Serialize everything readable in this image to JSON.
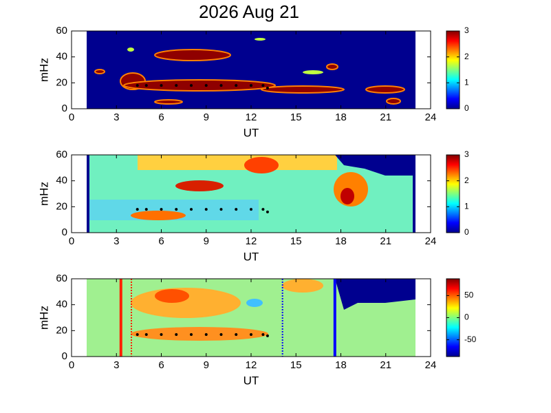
{
  "chart_data": [
    {
      "type": "spectrogram",
      "title": "2026 Aug 21",
      "xlabel": "UT",
      "ylabel": "mHz",
      "xlim": [
        0,
        24
      ],
      "xticks": [
        0,
        3,
        6,
        9,
        12,
        15,
        18,
        21,
        24
      ],
      "ylim": [
        0,
        60
      ],
      "yticks": [
        0,
        20,
        40,
        60
      ],
      "clim": [
        0,
        3
      ],
      "cticks": [
        0,
        1,
        2,
        3
      ],
      "x": [
        4.4,
        5,
        6,
        7,
        8,
        9,
        10,
        11,
        12,
        12.8,
        13.1
      ],
      "values": [
        18,
        18,
        18,
        18,
        18,
        18,
        18,
        18,
        18,
        18,
        16
      ],
      "color": "#000000"
    },
    {
      "type": "spectrogram",
      "xlabel": "UT",
      "ylabel": "mHz",
      "xlim": [
        0,
        24
      ],
      "xticks": [
        0,
        3,
        6,
        9,
        12,
        15,
        18,
        21,
        24
      ],
      "ylim": [
        0,
        60
      ],
      "yticks": [
        0,
        20,
        40,
        60
      ],
      "clim": [
        0,
        3
      ],
      "cticks": [
        0,
        1,
        2,
        3
      ],
      "x": [
        4.4,
        5,
        6,
        7,
        8,
        9,
        10,
        11,
        12,
        12.8,
        13.1
      ],
      "values": [
        18,
        18,
        18,
        18,
        18,
        18,
        18,
        18,
        18,
        18,
        16
      ],
      "color": "#000000"
    },
    {
      "type": "spectrogram",
      "xlabel": "UT",
      "ylabel": "mHz",
      "xlim": [
        0,
        24
      ],
      "xticks": [
        0,
        3,
        6,
        9,
        12,
        15,
        18,
        21,
        24
      ],
      "ylim": [
        0,
        60
      ],
      "yticks": [
        0,
        20,
        40,
        60
      ],
      "clim": [
        -88,
        88
      ],
      "cticks": [
        -50,
        0,
        50
      ],
      "x": [
        4.4,
        5,
        6,
        7,
        8,
        9,
        10,
        11,
        12,
        12.8,
        13.1
      ],
      "values": [
        17,
        17,
        17,
        17,
        17,
        17,
        17,
        17,
        17,
        17,
        16
      ],
      "color": "#000000",
      "vlines": [
        {
          "x": 3.3,
          "color": "#ff2000",
          "dashed": false
        },
        {
          "x": 4,
          "color": "#ff2000",
          "dashed": true
        },
        {
          "x": 14.1,
          "color": "#0000ff",
          "dashed": true
        },
        {
          "x": 17.6,
          "color": "#0000ff",
          "dashed": false
        }
      ]
    }
  ]
}
